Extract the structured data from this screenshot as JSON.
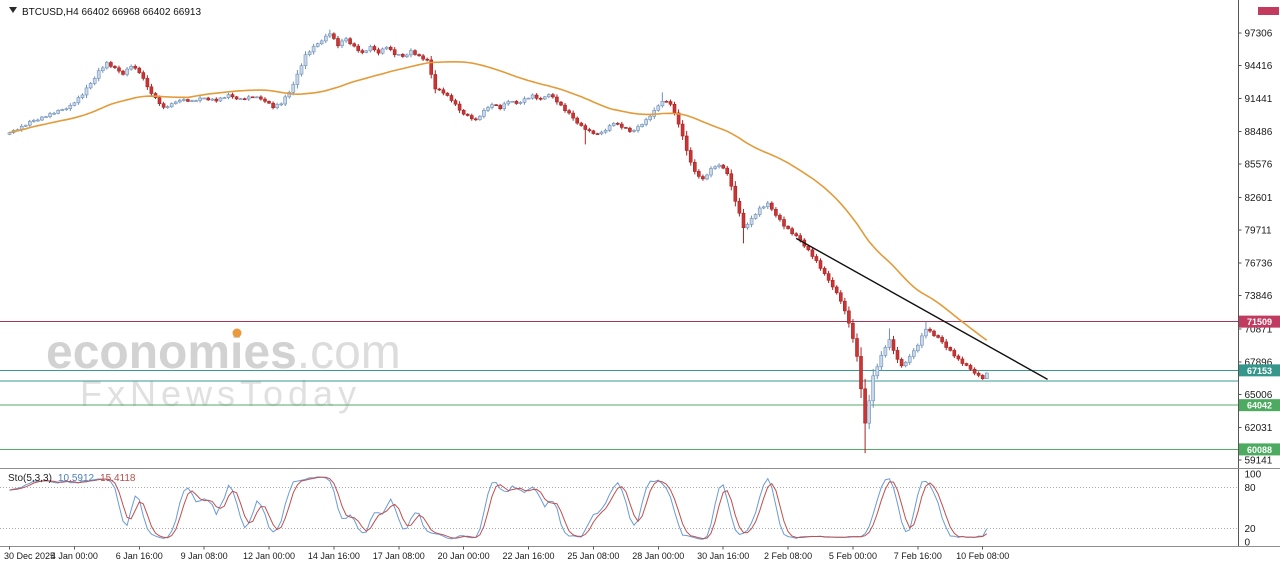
{
  "header": {
    "symbol_label": "BTCUSD,H4 66402 66968 66402 66913"
  },
  "watermark": {
    "brand": "economies",
    "brand_suffix": ".com",
    "subtitle": "FxNewsToday",
    "accent_color": "#e89a3c"
  },
  "indicator": {
    "name": "Sto(5,3,3)",
    "value_main": "10.5912",
    "value_signal": "15.4118"
  },
  "chart_data": {
    "type": "candlestick",
    "symbol": "BTCUSD",
    "timeframe": "H4",
    "current_bar": {
      "open": 66402,
      "high": 66968,
      "low": 66402,
      "close": 66913
    },
    "y_axis": {
      "tick_labels": [
        97306,
        94416,
        91441,
        88486,
        85576,
        82601,
        79711,
        76736,
        73846,
        70871,
        67896,
        65006,
        62031,
        59141
      ]
    },
    "x_axis": {
      "first_bar": 0,
      "bar_step": 16,
      "tick_labels": [
        "30 Dec 2025",
        "4 Jan 00:00",
        "6 Jan 16:00",
        "9 Jan 08:00",
        "12 Jan 00:00",
        "14 Jan 16:00",
        "17 Jan 08:00",
        "20 Jan 00:00",
        "22 Jan 16:00",
        "25 Jan 08:00",
        "28 Jan 00:00",
        "30 Jan 16:00",
        "2 Feb 08:00",
        "5 Feb 00:00",
        "7 Feb 16:00",
        "10 Feb 08:00"
      ]
    },
    "bar_count": 242,
    "jitter_amplitude": 33,
    "price_waypoints": [
      [
        0,
        88400
      ],
      [
        3,
        88900
      ],
      [
        6,
        89500
      ],
      [
        9,
        89900
      ],
      [
        12,
        90300
      ],
      [
        15,
        90800
      ],
      [
        18,
        91800
      ],
      [
        20,
        92800
      ],
      [
        22,
        93900
      ],
      [
        24,
        94600
      ],
      [
        26,
        94100
      ],
      [
        28,
        93700
      ],
      [
        30,
        94400
      ],
      [
        32,
        93800
      ],
      [
        34,
        92500
      ],
      [
        36,
        91500
      ],
      [
        38,
        90600
      ],
      [
        40,
        90900
      ],
      [
        42,
        91400
      ],
      [
        45,
        91200
      ],
      [
        48,
        91500
      ],
      [
        51,
        91300
      ],
      [
        54,
        91700
      ],
      [
        57,
        91400
      ],
      [
        60,
        91600
      ],
      [
        63,
        91300
      ],
      [
        65,
        90700
      ],
      [
        67,
        91000
      ],
      [
        69,
        92000
      ],
      [
        71,
        93600
      ],
      [
        73,
        95300
      ],
      [
        75,
        96000
      ],
      [
        77,
        96700
      ],
      [
        79,
        97300
      ],
      [
        81,
        96200
      ],
      [
        83,
        96800
      ],
      [
        85,
        96100
      ],
      [
        87,
        95500
      ],
      [
        89,
        96000
      ],
      [
        91,
        95600
      ],
      [
        93,
        96100
      ],
      [
        95,
        95400
      ],
      [
        97,
        95200
      ],
      [
        99,
        95700
      ],
      [
        101,
        95200
      ],
      [
        103,
        94800
      ],
      [
        105,
        92400
      ],
      [
        107,
        92000
      ],
      [
        109,
        91300
      ],
      [
        111,
        90400
      ],
      [
        113,
        89900
      ],
      [
        115,
        89500
      ],
      [
        117,
        90300
      ],
      [
        119,
        91000
      ],
      [
        121,
        90600
      ],
      [
        123,
        91200
      ],
      [
        125,
        91000
      ],
      [
        127,
        91400
      ],
      [
        129,
        91700
      ],
      [
        131,
        91300
      ],
      [
        133,
        91900
      ],
      [
        135,
        91200
      ],
      [
        137,
        90400
      ],
      [
        139,
        89700
      ],
      [
        141,
        89000
      ],
      [
        143,
        88500
      ],
      [
        145,
        88200
      ],
      [
        147,
        88700
      ],
      [
        149,
        89300
      ],
      [
        151,
        88900
      ],
      [
        153,
        88500
      ],
      [
        155,
        88900
      ],
      [
        157,
        89500
      ],
      [
        159,
        90300
      ],
      [
        161,
        91300
      ],
      [
        163,
        91000
      ],
      [
        165,
        89200
      ],
      [
        167,
        86800
      ],
      [
        169,
        84900
      ],
      [
        171,
        84200
      ],
      [
        173,
        85100
      ],
      [
        175,
        85600
      ],
      [
        177,
        84800
      ],
      [
        179,
        82300
      ],
      [
        181,
        79900
      ],
      [
        183,
        80700
      ],
      [
        185,
        81600
      ],
      [
        187,
        82000
      ],
      [
        189,
        81100
      ],
      [
        191,
        80100
      ],
      [
        193,
        79400
      ],
      [
        195,
        78800
      ],
      [
        197,
        77900
      ],
      [
        199,
        76900
      ],
      [
        201,
        75700
      ],
      [
        203,
        74700
      ],
      [
        205,
        73400
      ],
      [
        207,
        71400
      ],
      [
        209,
        68400
      ],
      [
        210,
        65600
      ],
      [
        211,
        62400
      ],
      [
        212,
        64500
      ],
      [
        213,
        66600
      ],
      [
        215,
        68400
      ],
      [
        217,
        70000
      ],
      [
        218,
        68900
      ],
      [
        220,
        67500
      ],
      [
        222,
        68300
      ],
      [
        224,
        69500
      ],
      [
        226,
        70900
      ],
      [
        228,
        70300
      ],
      [
        230,
        69700
      ],
      [
        232,
        68900
      ],
      [
        234,
        68100
      ],
      [
        236,
        67500
      ],
      [
        238,
        67000
      ],
      [
        240,
        66402
      ],
      [
        241,
        66913
      ]
    ],
    "wick_overrides": {
      "79": {
        "high": 97600
      },
      "142": {
        "low": 87350
      },
      "161": {
        "high": 92000
      },
      "181": {
        "low": 78500
      },
      "211": {
        "low": 59750
      },
      "217": {
        "high": 70900
      },
      "226": {
        "high": 71480
      },
      "241": {
        "high": 66968,
        "low": 66402
      }
    },
    "levels": [
      {
        "price": 71509,
        "role": "resistance-line",
        "line_color": "#a13a57",
        "tag_color": "#c13a60",
        "tagged": true
      },
      {
        "price": 67153,
        "role": "support-line",
        "line_color": "#3a9a8f",
        "tag_color": "#35978c",
        "tagged": true
      },
      {
        "price": 66200,
        "role": "support-line",
        "line_color": "#3a9a8f",
        "tag_color": "#35978c",
        "tagged": false
      },
      {
        "price": 64042,
        "role": "support-line",
        "line_color": "#56ab68",
        "tag_color": "#4cab60",
        "tagged": true
      },
      {
        "price": 60088,
        "role": "support-line",
        "line_color": "#56ab68",
        "tag_color": "#4cab60",
        "tagged": true
      }
    ],
    "trendline": {
      "from_bar": 194,
      "from_price": 78950,
      "to_bar": 256,
      "to_price": 66350,
      "color": "#111111"
    },
    "moving_average": {
      "period": 45,
      "color": "#e39b3a"
    },
    "stochastic": {
      "k": 5,
      "slowing": 3,
      "d": 3,
      "last_main": 10.5912,
      "last_signal": 15.4118,
      "axis_labels": [
        100,
        80,
        20,
        0
      ],
      "bands": [
        80,
        20
      ],
      "color_main": "#6a9bd8",
      "color_signal": "#c0504d"
    },
    "colors": {
      "up_fill": "#c9d8ec",
      "up_stroke": "#6e8fb8",
      "down_fill": "#cd3434",
      "down_stroke": "#a82424",
      "background": "#ffffff",
      "axis_text": "#1a1a1a"
    }
  }
}
